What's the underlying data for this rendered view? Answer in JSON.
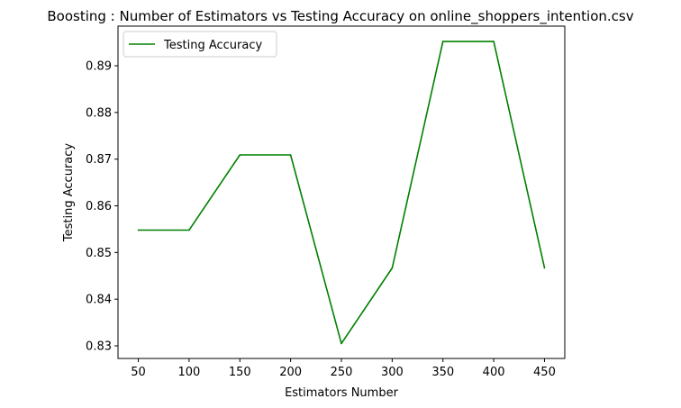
{
  "chart_data": {
    "type": "line",
    "title": "Boosting : Number of Estimators vs Testing Accuracy on online_shoppers_intention.csv",
    "xlabel": "Estimators Number",
    "ylabel": "Testing Accuracy",
    "x": [
      50,
      100,
      150,
      200,
      250,
      300,
      350,
      400,
      450
    ],
    "series": [
      {
        "name": "Testing Accuracy",
        "color": "#008000",
        "values": [
          0.8548,
          0.8548,
          0.8709,
          0.8709,
          0.8305,
          0.8467,
          0.8952,
          0.8952,
          0.8467
        ]
      }
    ],
    "xticks": [
      "50",
      "100",
      "150",
      "200",
      "250",
      "300",
      "350",
      "400",
      "450"
    ],
    "yticks": [
      "0.83",
      "0.84",
      "0.85",
      "0.86",
      "0.87",
      "0.88",
      "0.89"
    ],
    "xlim": [
      30,
      470
    ],
    "ylim": [
      0.8273,
      0.8985
    ],
    "legend_position": "upper-left",
    "grid": false
  }
}
